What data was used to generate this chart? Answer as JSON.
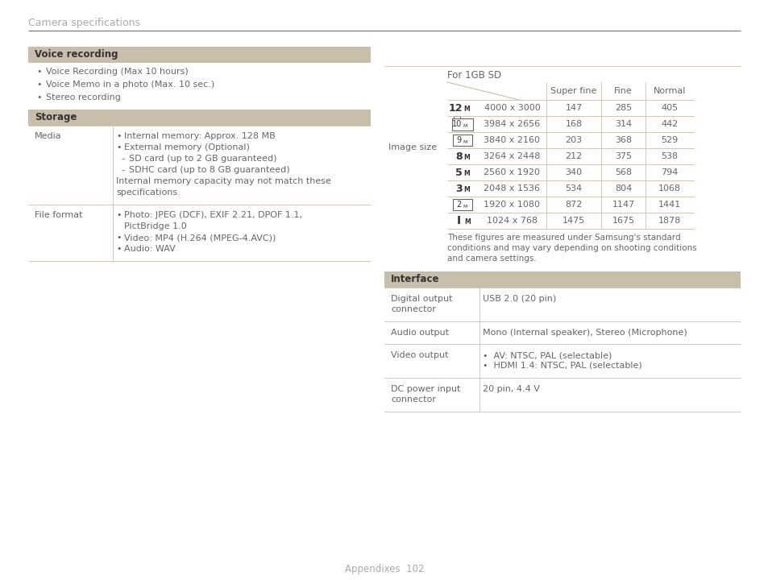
{
  "bg_color": "#ffffff",
  "header_color": "#c8bfaa",
  "text_color": "#777777",
  "dark_text": "#666666",
  "title": "Camera specifications",
  "page_label": "Appendixes  102",
  "left_panel": {
    "voice_header": "Voice recording",
    "voice_bullets": [
      "Voice Recording (Max 10 hours)",
      "Voice Memo in a photo (Max. 10 sec.)",
      "Stereo recording"
    ],
    "storage_header": "Storage",
    "media_label": "Media",
    "media_lines": [
      [
        "•",
        "Internal memory: Approx. 128 MB"
      ],
      [
        "•",
        "External memory (Optional)"
      ],
      [
        "-",
        "SD card (up to 2 GB guaranteed)"
      ],
      [
        "-",
        "SDHC card (up to 8 GB guaranteed)"
      ],
      [
        "",
        "Internal memory capacity may not match these"
      ],
      [
        "",
        "specifications."
      ]
    ],
    "file_label": "File format",
    "file_lines": [
      [
        "•",
        "Photo: JPEG (DCF), EXIF 2.21, DPOF 1.1,"
      ],
      [
        "",
        "PictBridge 1.0"
      ],
      [
        "•",
        "Video: MP4 (H.264 (MPEG-4.AVC))"
      ],
      [
        "•",
        "Audio: WAV"
      ]
    ]
  },
  "right_panel": {
    "image_size_label": "Image size",
    "table_title": "For 1GB SD",
    "table_rows": [
      {
        "icon": "12",
        "icon_style": "bold",
        "res": "4000 x 3000",
        "sf": "147",
        "f": "285",
        "n": "405"
      },
      {
        "icon": "10",
        "icon_style": "box_camera",
        "res": "3984 x 2656",
        "sf": "168",
        "f": "314",
        "n": "442"
      },
      {
        "icon": "9",
        "icon_style": "box_plain",
        "res": "3840 x 2160",
        "sf": "203",
        "f": "368",
        "n": "529"
      },
      {
        "icon": "8",
        "icon_style": "bold",
        "res": "3264 x 2448",
        "sf": "212",
        "f": "375",
        "n": "538"
      },
      {
        "icon": "5",
        "icon_style": "bold",
        "res": "2560 x 1920",
        "sf": "340",
        "f": "568",
        "n": "794"
      },
      {
        "icon": "3",
        "icon_style": "bold",
        "res": "2048 x 1536",
        "sf": "534",
        "f": "804",
        "n": "1068"
      },
      {
        "icon": "2",
        "icon_style": "box_plain",
        "res": "1920 x 1080",
        "sf": "872",
        "f": "1147",
        "n": "1441"
      },
      {
        "icon": "1",
        "icon_style": "bar",
        "res": "1024 x 768",
        "sf": "1475",
        "f": "1675",
        "n": "1878"
      }
    ],
    "footnote_lines": [
      "These figures are measured under Samsung's standard",
      "conditions and may vary depending on shooting conditions",
      "and camera settings."
    ],
    "interface_header": "Interface",
    "interface_rows": [
      {
        "label": [
          "Digital output",
          "connector"
        ],
        "content": [
          "USB 2.0 (20 pin)"
        ]
      },
      {
        "label": [
          "Audio output"
        ],
        "content": [
          "Mono (Internal speaker), Stereo (Microphone)"
        ]
      },
      {
        "label": [
          "Video output"
        ],
        "content": [
          "•  AV: NTSC, PAL (selectable)",
          "•  HDMI 1.4: NTSC, PAL (selectable)"
        ]
      },
      {
        "label": [
          "DC power input",
          "connector"
        ],
        "content": [
          "20 pin, 4.4 V"
        ]
      }
    ]
  }
}
